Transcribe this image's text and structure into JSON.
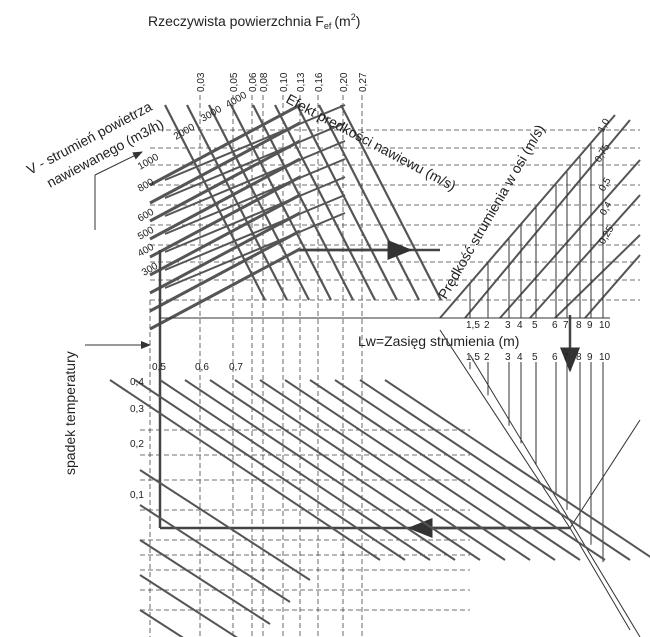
{
  "title": {
    "text": "Rzeczywista powierzchnia F",
    "subscript": "ef",
    "unit_open": "(m",
    "superscript": "2",
    "unit_close": ")"
  },
  "area_ticks": [
    "0,03",
    "0,05",
    "0,06",
    "0,08",
    "0,10",
    "0,13",
    "0,16",
    "0,20",
    "0,27"
  ],
  "flow": {
    "label_line1": "V - strumień powietrza",
    "label_line2": "nawiewanego (m3/h)",
    "ticks": [
      "4000",
      "3000",
      "2000",
      "1000",
      "800",
      "600",
      "500",
      "400",
      "300"
    ]
  },
  "effect_label": "Efekt prędkości nawiewu (m/s)",
  "axis_speed": {
    "label": "Prędkość strumienia w osi (m/s)",
    "ticks": [
      "1,0",
      "0,75",
      "0,5",
      "0,4",
      "0,25"
    ]
  },
  "throw": {
    "label": "Lw=Zasięg strumienia (m)",
    "ticks": [
      "1,5",
      "2",
      "3",
      "4",
      "5",
      "6",
      "7",
      "8",
      "9",
      "10"
    ]
  },
  "temperature": {
    "label": "spadek temperatury",
    "top_ticks": [
      "0,5",
      "0,6",
      "0,7"
    ],
    "left_ticks": [
      "0,4",
      "0,3",
      "0,2",
      "0,1"
    ]
  }
}
